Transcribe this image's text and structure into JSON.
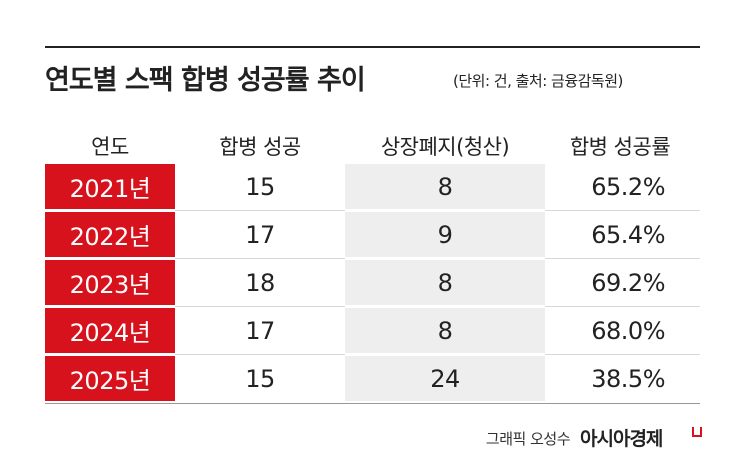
{
  "header": {
    "title": "연도별 스팩 합병 성공률 추이",
    "subtitle": "(단위: 건, 출처: 금융감독원)"
  },
  "table": {
    "columns": [
      "연도",
      "합병 성공",
      "상장폐지(청산)",
      "합병 성공률"
    ],
    "rows": [
      [
        "2021년",
        "15",
        "8",
        "65.2%"
      ],
      [
        "2022년",
        "17",
        "9",
        "65.4%"
      ],
      [
        "2023년",
        "18",
        "8",
        "69.2%"
      ],
      [
        "2024년",
        "17",
        "8",
        "68.0%"
      ],
      [
        "2025년",
        "15",
        "24",
        "38.5%"
      ]
    ]
  },
  "footer": {
    "credit": "그래픽 오성수",
    "brand": "아시아경제"
  }
}
